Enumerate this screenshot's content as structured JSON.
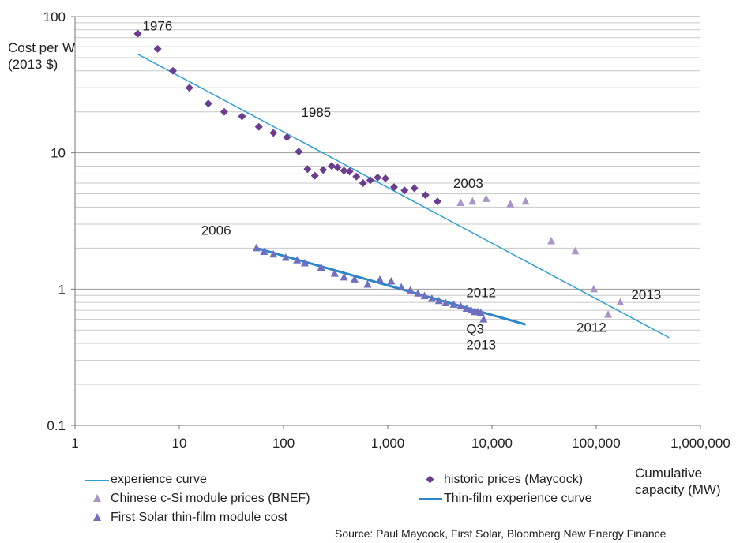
{
  "chart_data": {
    "type": "scatter",
    "title": "",
    "xlabel": "Cumulative capacity (MW)",
    "ylabel": "Cost per W (2013 $)",
    "xscale": "log",
    "yscale": "log",
    "xlim": [
      1,
      1000000
    ],
    "ylim": [
      0.1,
      100
    ],
    "x_ticks": [
      "1",
      "10",
      "100",
      "1,000",
      "10,000",
      "100,000",
      "1,000,000"
    ],
    "y_ticks": [
      "0.1",
      "1",
      "10",
      "100"
    ],
    "grid": "horizontal",
    "legend_position": "bottom",
    "series": [
      {
        "name": "experience curve",
        "kind": "line",
        "color": "#2e9fd6",
        "points": [
          [
            4,
            53
          ],
          [
            500000,
            0.44
          ]
        ]
      },
      {
        "name": "historic prices (Maycock)",
        "kind": "scatter",
        "marker": "diamond",
        "color": "#6b3d8e",
        "points": [
          [
            4,
            75
          ],
          [
            6.2,
            58
          ],
          [
            8.7,
            40
          ],
          [
            12.5,
            30
          ],
          [
            19,
            23
          ],
          [
            27,
            20
          ],
          [
            40,
            18.5
          ],
          [
            58,
            15.5
          ],
          [
            80,
            14
          ],
          [
            108,
            13
          ],
          [
            140,
            10.2
          ],
          [
            170,
            7.6
          ],
          [
            200,
            6.8
          ],
          [
            240,
            7.5
          ],
          [
            290,
            8
          ],
          [
            330,
            7.8
          ],
          [
            380,
            7.4
          ],
          [
            430,
            7.3
          ],
          [
            500,
            6.7
          ],
          [
            580,
            6
          ],
          [
            680,
            6.3
          ],
          [
            800,
            6.6
          ],
          [
            950,
            6.5
          ],
          [
            1150,
            5.6
          ],
          [
            1450,
            5.3
          ],
          [
            1800,
            5.5
          ],
          [
            2300,
            4.9
          ],
          [
            3000,
            4.4
          ]
        ]
      },
      {
        "name": "Chinese c-Si module prices (BNEF)",
        "kind": "scatter",
        "marker": "triangle",
        "color": "#a995c9",
        "points": [
          [
            5000,
            4.3
          ],
          [
            6500,
            4.4
          ],
          [
            8800,
            4.6
          ],
          [
            15000,
            4.2
          ],
          [
            21000,
            4.4
          ],
          [
            37000,
            2.25
          ],
          [
            63000,
            1.9
          ],
          [
            95000,
            1.0
          ],
          [
            130000,
            0.65
          ],
          [
            170000,
            0.8
          ]
        ]
      },
      {
        "name": "Thin-film experience curve",
        "kind": "line",
        "color": "#2a86c9",
        "points": [
          [
            55,
            2.0
          ],
          [
            21000,
            0.55
          ]
        ]
      },
      {
        "name": "First Solar thin-film module cost",
        "kind": "scatter",
        "marker": "triangle",
        "color": "#6f6fc0",
        "points": [
          [
            55,
            2.0
          ],
          [
            65,
            1.88
          ],
          [
            80,
            1.8
          ],
          [
            105,
            1.7
          ],
          [
            135,
            1.63
          ],
          [
            160,
            1.55
          ],
          [
            230,
            1.44
          ],
          [
            310,
            1.3
          ],
          [
            380,
            1.22
          ],
          [
            480,
            1.18
          ],
          [
            640,
            1.08
          ],
          [
            840,
            1.17
          ],
          [
            1080,
            1.14
          ],
          [
            1350,
            1.03
          ],
          [
            1650,
            0.98
          ],
          [
            1950,
            0.93
          ],
          [
            2250,
            0.89
          ],
          [
            2650,
            0.85
          ],
          [
            3100,
            0.82
          ],
          [
            3600,
            0.79
          ],
          [
            4300,
            0.77
          ],
          [
            5000,
            0.75
          ],
          [
            5700,
            0.72
          ],
          [
            6300,
            0.7
          ],
          [
            6800,
            0.68
          ],
          [
            7300,
            0.68
          ],
          [
            7800,
            0.67
          ],
          [
            8300,
            0.6
          ]
        ]
      }
    ],
    "annotations": [
      {
        "text": "1976",
        "x": 4,
        "y": 75
      },
      {
        "text": "1985",
        "x": 108,
        "y": 13
      },
      {
        "text": "2003",
        "x": 3000,
        "y": 4.4
      },
      {
        "text": "2006",
        "x": 55,
        "y": 2.0
      },
      {
        "text": "2012",
        "x": 8300,
        "y": 0.6
      },
      {
        "text": "Q3",
        "x": 8300,
        "y": 0.6
      },
      {
        "text": "2013",
        "x": 8300,
        "y": 0.6
      },
      {
        "text": "2012",
        "x": 130000,
        "y": 0.65
      },
      {
        "text": "2013",
        "x": 170000,
        "y": 0.8
      }
    ]
  },
  "legend": {
    "experience_curve": "experience curve",
    "chinese": "Chinese c-Si module prices (BNEF)",
    "first_solar": "First Solar thin-film module cost",
    "historic": "historic prices (Maycock)",
    "thin_film": "Thin-film experience curve"
  },
  "source": "Source: Paul Maycock, First Solar, Bloomberg New Energy Finance"
}
